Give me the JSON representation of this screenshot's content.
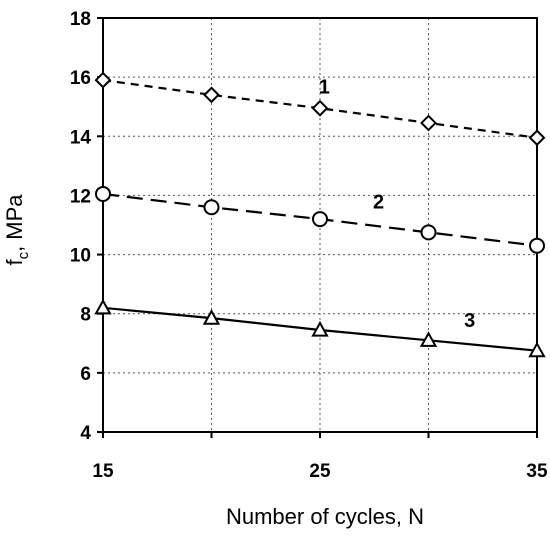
{
  "chart_data": {
    "type": "line",
    "title": "",
    "xlabel": "Number of cycles, N",
    "ylabel_main": "f",
    "ylabel_sub": "c",
    "ylabel_rest": ", MPa",
    "xlim": [
      15,
      35
    ],
    "ylim": [
      4,
      18
    ],
    "x_ticks": [
      15,
      25,
      35
    ],
    "x_gridlines": [
      15,
      20,
      25,
      30,
      35
    ],
    "y_ticks": [
      4,
      6,
      8,
      10,
      12,
      14,
      16,
      18
    ],
    "grid": true,
    "legend": "none",
    "x": [
      15,
      20,
      25,
      30,
      35
    ],
    "series": [
      {
        "label": "1",
        "values": [
          15.9,
          15.4,
          14.95,
          14.45,
          13.95
        ],
        "marker": "diamond",
        "line_style": "dashed-short",
        "color": "#000000"
      },
      {
        "label": "2",
        "values": [
          12.05,
          11.6,
          11.2,
          10.75,
          10.3
        ],
        "marker": "circle",
        "line_style": "dashed-long",
        "color": "#000000"
      },
      {
        "label": "3",
        "values": [
          8.2,
          7.85,
          7.45,
          7.1,
          6.75
        ],
        "marker": "triangle",
        "line_style": "solid",
        "color": "#000000"
      }
    ]
  }
}
